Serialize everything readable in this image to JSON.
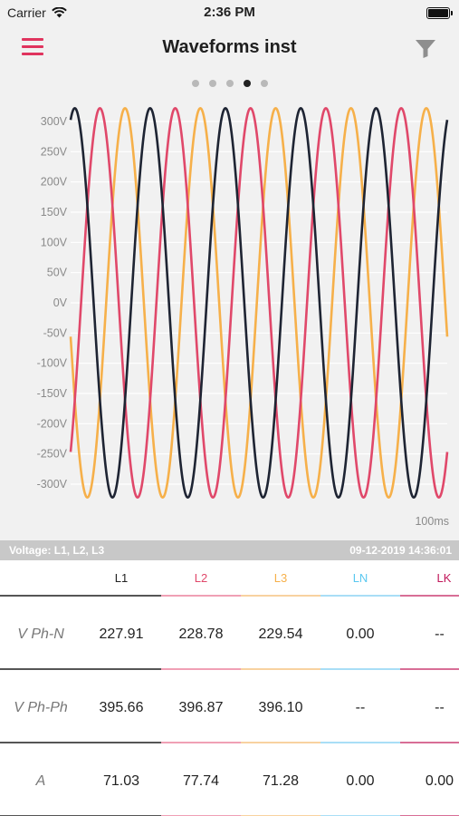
{
  "status_bar": {
    "carrier": "Carrier",
    "time": "2:36 PM"
  },
  "nav": {
    "title": "Waveforms inst",
    "menu_icon": "hamburger-menu-icon",
    "filter_icon": "filter-icon"
  },
  "pager": {
    "count": 5,
    "active_index": 3
  },
  "colors": {
    "accent": "#e0345e",
    "L1": "#1e2433",
    "L2": "#e0486a",
    "L3": "#f6b04a",
    "LN": "#5ac8f0",
    "LK": "#c2185b"
  },
  "chart_data": {
    "type": "line",
    "title": "",
    "xlabel": "100ms",
    "ylabel": "",
    "ylim": [
      -330,
      330
    ],
    "y_ticks": [
      "300V",
      "250V",
      "200V",
      "150V",
      "100V",
      "50V",
      "0V",
      "-50V",
      "-100V",
      "-150V",
      "-200V",
      "-250V",
      "-300V"
    ],
    "y_tick_values": [
      300,
      250,
      200,
      150,
      100,
      50,
      0,
      -50,
      -100,
      -150,
      -200,
      -250,
      -300
    ],
    "grid": true,
    "x_range_ms": [
      0,
      100
    ],
    "series": [
      {
        "name": "L1",
        "color": "#1e2433",
        "amplitude": 322,
        "frequency_hz": 50,
        "phase_deg": 70
      },
      {
        "name": "L2",
        "color": "#e0486a",
        "amplitude": 322,
        "frequency_hz": 50,
        "phase_deg": -50
      },
      {
        "name": "L3",
        "color": "#f6b04a",
        "amplitude": 322,
        "frequency_hz": 50,
        "phase_deg": 190
      }
    ]
  },
  "info": {
    "left": "Voltage: L1, L2, L3",
    "right": "09-12-2019 14:36:01"
  },
  "table": {
    "columns": [
      {
        "label": "L1",
        "color": "#222222",
        "bar": "#555555"
      },
      {
        "label": "L2",
        "color": "#e0486a",
        "bar": "#f0a0b5"
      },
      {
        "label": "L3",
        "color": "#f6b04a",
        "bar": "#f8d2a0"
      },
      {
        "label": "LN",
        "color": "#5ac8f0",
        "bar": "#a9def6"
      },
      {
        "label": "LK",
        "color": "#c2185b",
        "bar": "#d86e96"
      }
    ],
    "rows": [
      {
        "label": "V Ph-N",
        "values": [
          "227.91",
          "228.78",
          "229.54",
          "0.00",
          "--"
        ]
      },
      {
        "label": "V Ph-Ph",
        "values": [
          "395.66",
          "396.87",
          "396.10",
          "--",
          "--"
        ]
      },
      {
        "label": "A",
        "values": [
          "71.03",
          "77.74",
          "71.28",
          "0.00",
          "0.00"
        ]
      }
    ]
  }
}
